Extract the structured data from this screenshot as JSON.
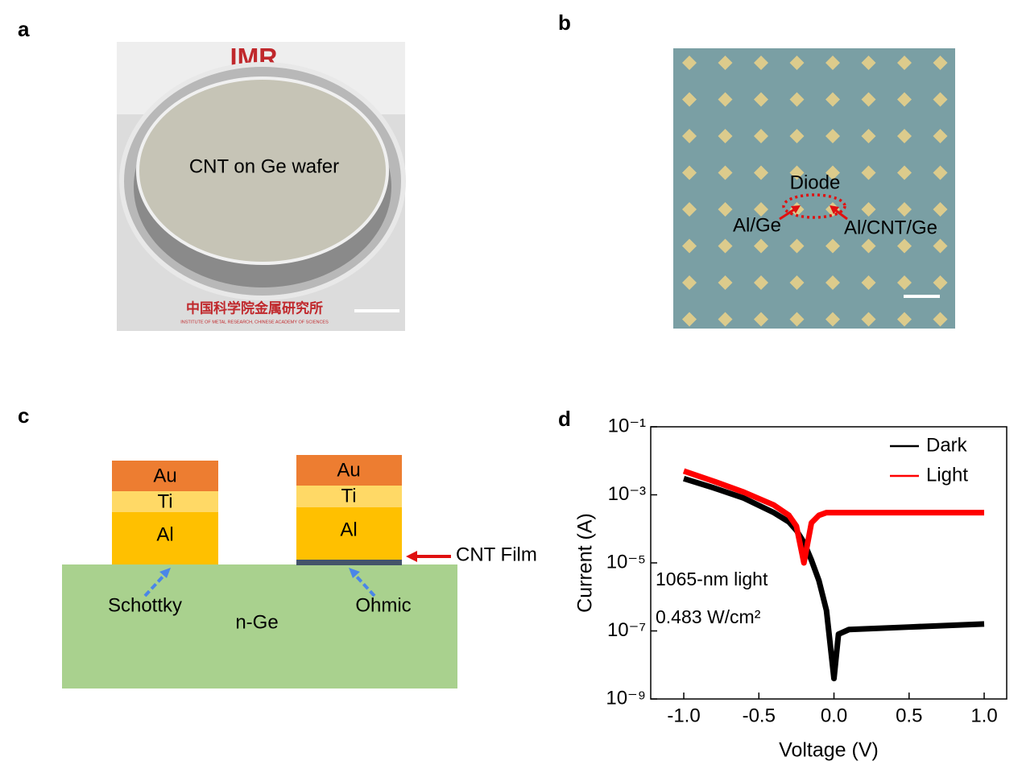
{
  "panels": {
    "a": {
      "label": "a",
      "logo": "IMR",
      "institute_cn": "中国科学院金属研究所",
      "institute_en": "INSTITUTE OF METAL RESEARCH, CHINESE ACADEMY OF SCIENCES",
      "caption": "CNT on Ge wafer"
    },
    "b": {
      "label": "b",
      "diode": "Diode",
      "left_contact": "Al/Ge",
      "right_contact": "Al/CNT/Ge"
    },
    "c": {
      "label": "c",
      "left_stack": [
        "Au",
        "Ti",
        "Al"
      ],
      "right_stack": [
        "Au",
        "Ti",
        "Al"
      ],
      "cnt_film": "CNT Film",
      "schottky": "Schottky",
      "ohmic": "Ohmic",
      "substrate": "n-Ge"
    },
    "d": {
      "label": "d"
    }
  },
  "chart_data": {
    "type": "line",
    "log_y": true,
    "x_label": "Voltage (V)",
    "y_label": "Current (A)",
    "annotations": [
      "1065-nm light",
      "0.483 W/cm²"
    ],
    "legend": "upper right",
    "x": [
      -1,
      -0.8,
      -0.6,
      -0.4,
      -0.3,
      -0.25,
      -0.2,
      -0.15,
      -0.1,
      -0.05,
      0,
      0.03,
      0.1,
      0.5,
      1
    ],
    "series": [
      {
        "name": "Dark",
        "color": "#000000",
        "values": [
          0.003,
          0.0016,
          0.0008,
          0.0003,
          0.00016,
          9e-05,
          4e-05,
          1.2e-05,
          3e-06,
          4e-07,
          4e-09,
          8e-08,
          1.1e-07,
          1.3e-07,
          1.6e-07
        ]
      },
      {
        "name": "Light",
        "color": "#ff0000",
        "values": [
          0.005,
          0.0025,
          0.0012,
          0.0005,
          0.00025,
          0.00012,
          1e-05,
          0.00015,
          0.00025,
          0.0003,
          0.0003,
          0.0003,
          0.0003,
          0.0003,
          0.0003
        ]
      }
    ],
    "xlim": [
      -1.22,
      1.15
    ],
    "xticks": [
      {
        "value": -1,
        "label": "-1.0"
      },
      -0.5,
      {
        "value": 0,
        "label": "0.0"
      },
      0.5,
      {
        "value": 1,
        "label": "1.0"
      }
    ],
    "ylim": [
      1e-09,
      0.1
    ],
    "yticks": [
      {
        "value": 1e-09,
        "label": "10⁻⁹"
      },
      {
        "value": 1e-07,
        "label": "10⁻⁷"
      },
      {
        "value": 1e-05,
        "label": "10⁻⁵"
      },
      {
        "value": 0.001,
        "label": "10⁻³"
      },
      {
        "value": 0.1,
        "label": "10⁻¹"
      }
    ]
  }
}
